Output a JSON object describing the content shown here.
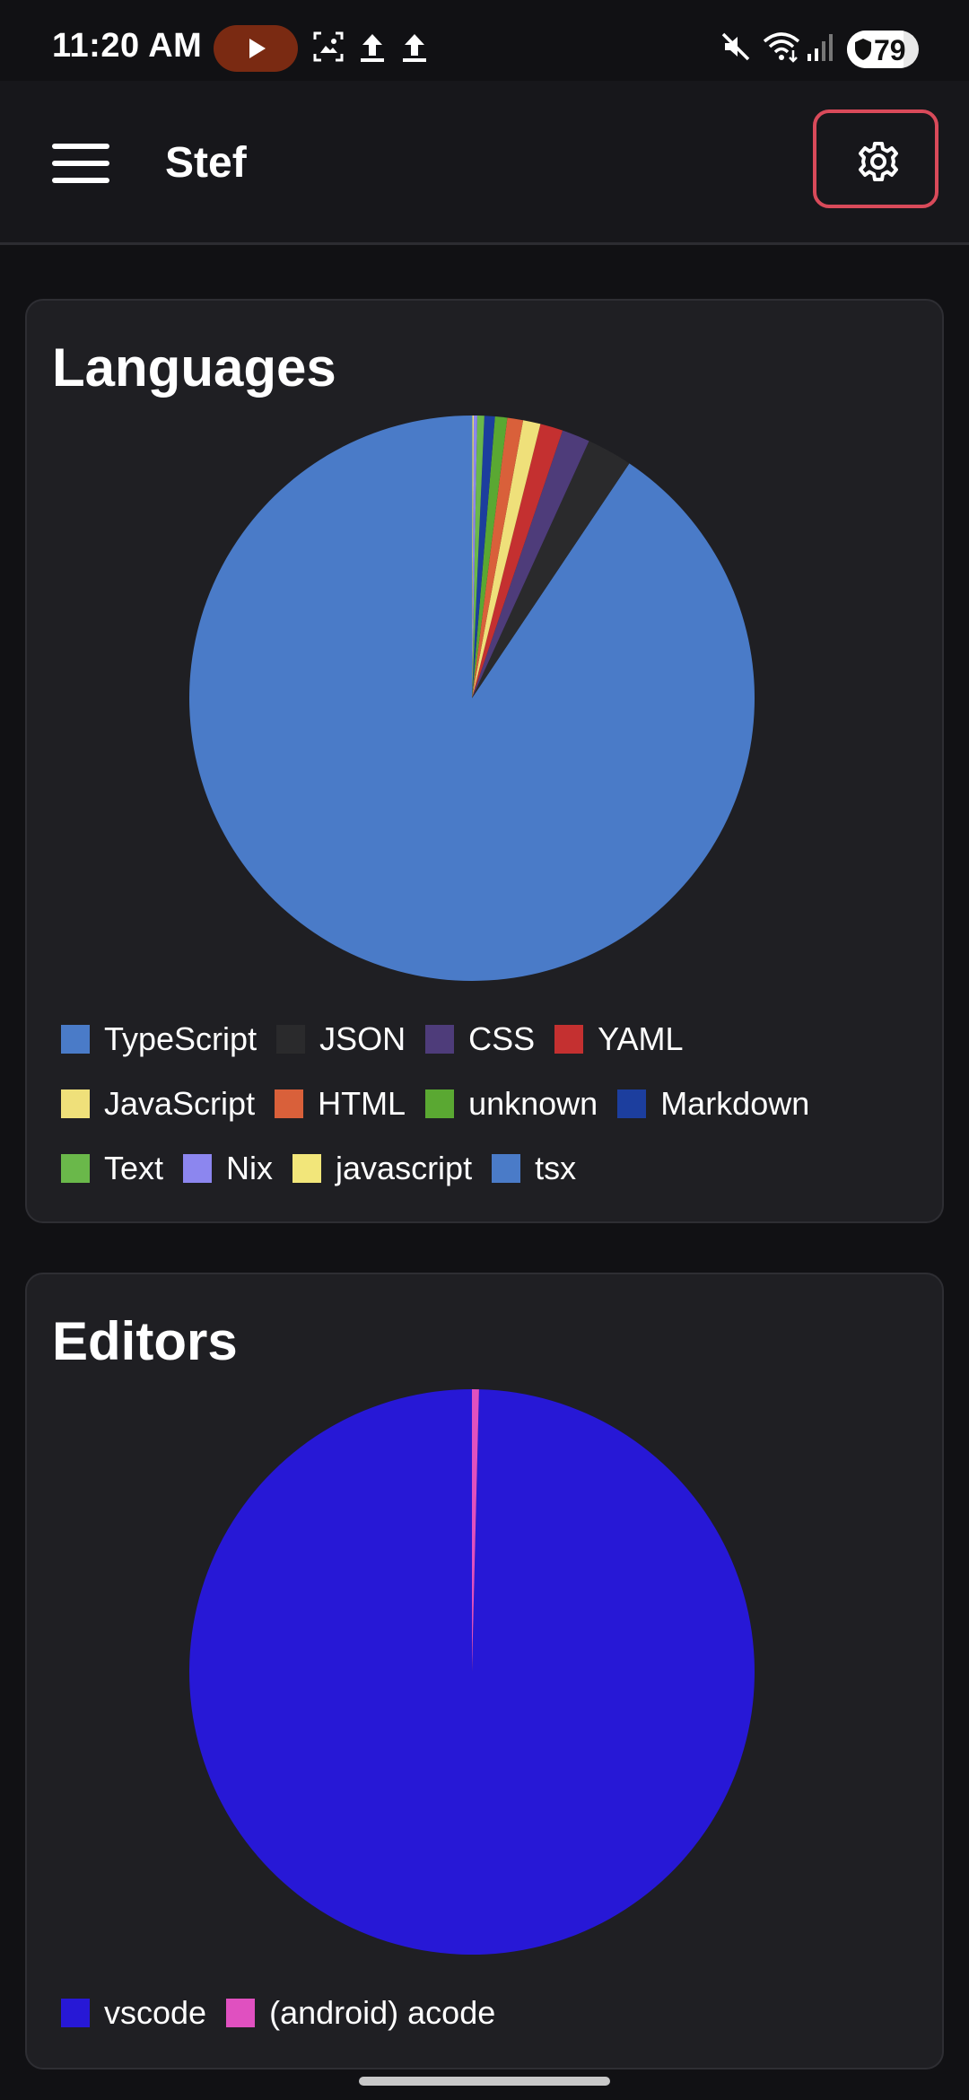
{
  "status_bar": {
    "time": "11:20 AM",
    "battery": "79",
    "battery_level": 0.79
  },
  "app_bar": {
    "title": "Stef",
    "menu_icon": "hamburger-menu-icon",
    "settings_icon": "gear-icon"
  },
  "charts": [
    {
      "title": "Languages",
      "chart_data": {
        "type": "pie",
        "title": "Languages",
        "start_angle_deg": 0,
        "direction": "counterclockwise",
        "legend_placement": "bottom",
        "slices": [
          {
            "label": "TypeScript",
            "value": 90.6,
            "color": "#4a7bc8"
          },
          {
            "label": "JSON",
            "value": 2.6,
            "color": "#2a2a2c"
          },
          {
            "label": "CSS",
            "value": 1.6,
            "color": "#4e3c7a"
          },
          {
            "label": "YAML",
            "value": 1.3,
            "color": "#c43030"
          },
          {
            "label": "JavaScript",
            "value": 1.0,
            "color": "#efe07a"
          },
          {
            "label": "HTML",
            "value": 0.9,
            "color": "#d9603a"
          },
          {
            "label": "unknown",
            "value": 0.7,
            "color": "#5aa832"
          },
          {
            "label": "Markdown",
            "value": 0.6,
            "color": "#1c3e9e"
          },
          {
            "label": "Text",
            "value": 0.4,
            "color": "#6ab84a"
          },
          {
            "label": "Nix",
            "value": 0.2,
            "color": "#8c86ef"
          },
          {
            "label": "javascript",
            "value": 0.08,
            "color": "#f2e67a"
          },
          {
            "label": "tsx",
            "value": 0.02,
            "color": "#4a7bc8"
          }
        ]
      }
    },
    {
      "title": "Editors",
      "chart_data": {
        "type": "pie",
        "title": "Editors",
        "start_angle_deg": 0,
        "direction": "counterclockwise",
        "legend_placement": "bottom",
        "slices": [
          {
            "label": "vscode",
            "value": 99.6,
            "color": "#2718d6"
          },
          {
            "label": "(android) acode",
            "value": 0.4,
            "color": "#e050c0"
          }
        ]
      }
    }
  ]
}
